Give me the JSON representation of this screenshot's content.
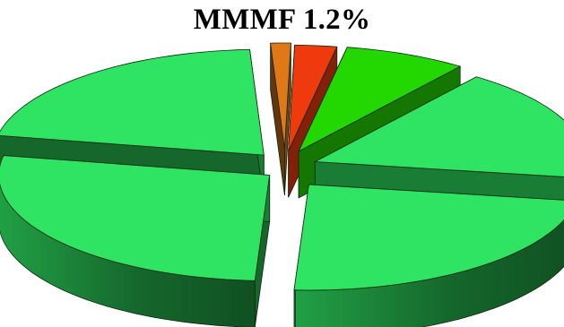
{
  "chart_data": {
    "type": "pie",
    "title": "MMMF 1.2%",
    "style": "3d-exploded",
    "slices": [
      {
        "value": 1.2,
        "color": "#e07818"
      },
      {
        "value": 2.5,
        "color": "#ee3a0c"
      },
      {
        "value": 7.3,
        "color": "#22d800"
      },
      {
        "value": 17.3,
        "color": "#2fe462"
      },
      {
        "value": 23.4,
        "color": "#2fe462"
      },
      {
        "value": 27.1,
        "color": "#2fe462"
      },
      {
        "value": 21.2,
        "color": "#2fe462"
      }
    ]
  }
}
